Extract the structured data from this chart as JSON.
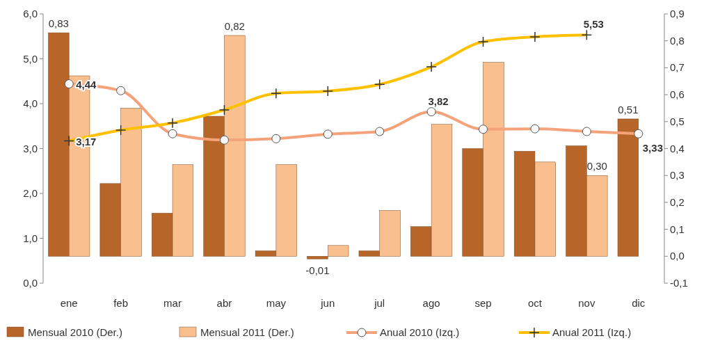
{
  "chart_data": {
    "type": "bar",
    "categories": [
      "ene",
      "feb",
      "mar",
      "abr",
      "may",
      "jun",
      "jul",
      "ago",
      "sep",
      "oct",
      "nov",
      "dic"
    ],
    "series": [
      {
        "name": "Mensual 2010 (Der.)",
        "axis": "y2",
        "color": "#b8652a",
        "values": [
          0.83,
          0.27,
          0.16,
          0.52,
          0.02,
          -0.01,
          0.02,
          0.11,
          0.4,
          0.39,
          0.41,
          0.51
        ],
        "value_labels": [
          "0,83",
          null,
          null,
          null,
          null,
          "-0,01",
          null,
          null,
          null,
          null,
          null,
          "0,51"
        ]
      },
      {
        "name": "Mensual 2011 (Der.)",
        "axis": "y2",
        "color": "#f9bf8f",
        "values": [
          0.67,
          0.55,
          0.34,
          0.82,
          0.34,
          0.04,
          0.17,
          0.49,
          0.72,
          0.35,
          0.3,
          null
        ],
        "value_labels": [
          null,
          null,
          null,
          "0,82",
          null,
          null,
          null,
          null,
          null,
          null,
          "0,30",
          null
        ]
      },
      {
        "name": "Anual 2010 (Izq.)",
        "type": "line",
        "axis": "y",
        "marker": "circle",
        "color": "#f4a27a",
        "values": [
          4.44,
          4.29,
          3.33,
          3.19,
          3.22,
          3.32,
          3.38,
          3.82,
          3.43,
          3.44,
          3.38,
          3.33
        ],
        "value_labels": [
          "4,44",
          null,
          null,
          null,
          null,
          null,
          null,
          "3,82",
          null,
          null,
          null,
          "3,33"
        ]
      },
      {
        "name": "Anual 2011 (Izq.)",
        "type": "line",
        "axis": "y",
        "marker": "cross",
        "color": "#ffc000",
        "values": [
          3.17,
          3.41,
          3.57,
          3.86,
          4.23,
          4.28,
          4.43,
          4.82,
          5.38,
          5.49,
          5.53,
          null
        ],
        "value_labels": [
          "3,17",
          null,
          null,
          null,
          null,
          null,
          null,
          null,
          null,
          null,
          "5,53",
          null
        ]
      }
    ],
    "ylim": [
      0,
      6
    ],
    "yticks": [
      {
        "value": 0,
        "label": "0,0"
      },
      {
        "value": 1,
        "label": "1,0"
      },
      {
        "value": 2,
        "label": "2,0"
      },
      {
        "value": 3,
        "label": "3,0"
      },
      {
        "value": 4,
        "label": "4,0"
      },
      {
        "value": 5,
        "label": "5,0"
      },
      {
        "value": 6,
        "label": "6,0"
      }
    ],
    "y2lim": [
      -0.1,
      0.9
    ],
    "y2ticks": [
      {
        "value": -0.1,
        "label": "-0,1"
      },
      {
        "value": 0,
        "label": "0,0"
      },
      {
        "value": 0.1,
        "label": "0,1"
      },
      {
        "value": 0.2,
        "label": "0,2"
      },
      {
        "value": 0.3,
        "label": "0,3"
      },
      {
        "value": 0.4,
        "label": "0,4"
      },
      {
        "value": 0.5,
        "label": "0,5"
      },
      {
        "value": 0.6,
        "label": "0,6"
      },
      {
        "value": 0.7,
        "label": "0,7"
      },
      {
        "value": 0.8,
        "label": "0,8"
      },
      {
        "value": 0.9,
        "label": "0,9"
      }
    ],
    "legend": "bottom",
    "grid": false
  }
}
